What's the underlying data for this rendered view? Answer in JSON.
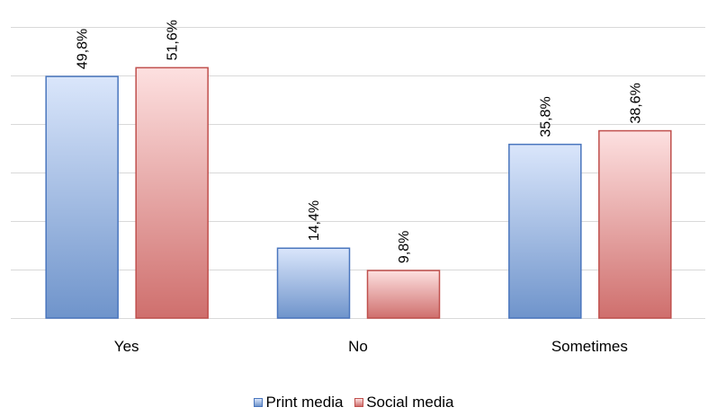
{
  "chart_data": {
    "type": "bar",
    "categories": [
      "Yes",
      "No",
      "Sometimes"
    ],
    "series": [
      {
        "name": "Print media",
        "values": [
          49.8,
          14.4,
          35.8
        ],
        "labels": [
          "49,8%",
          "14,4%",
          "35,8%"
        ]
      },
      {
        "name": "Social media",
        "values": [
          51.6,
          9.8,
          38.6
        ],
        "labels": [
          "51,6%",
          "9,8%",
          "38,6%"
        ]
      }
    ],
    "ylim": [
      0,
      60
    ],
    "grid": true,
    "legend_position": "bottom",
    "colors": {
      "print_top": "#dae6fb",
      "print_bottom": "#6f94cb",
      "print_border": "#4a76be",
      "social_top": "#fde0e0",
      "social_bottom": "#cf6f6d",
      "social_border": "#c0504d",
      "grid": "#d9d9d9"
    }
  }
}
